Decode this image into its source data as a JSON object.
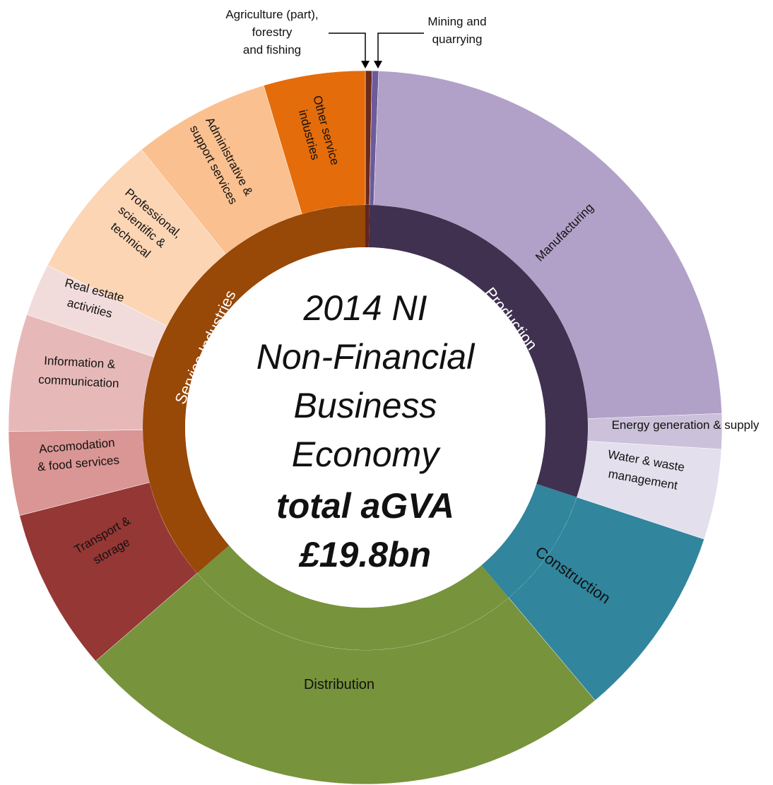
{
  "chart_data": {
    "type": "sunburst",
    "center_text": [
      "2014 NI",
      "Non-Financial",
      "Business",
      "Economy"
    ],
    "center_emphasis": [
      "total aGVA",
      "£19.8bn"
    ],
    "groups": [
      {
        "color": "#632523",
        "children": [
          {
            "name": [
              "Agriculture (part),",
              "forestry",
              "and fishing"
            ],
            "value": 0.3,
            "color": "#6b2a1a"
          }
        ]
      },
      {
        "name": "Production",
        "color": "#403151",
        "children": [
          {
            "name": [
              "Mining and",
              "quarrying"
            ],
            "value": 0.3,
            "color": "#6d5a9a"
          },
          {
            "name": [
              "Manufacturing"
            ],
            "value": 23.8,
            "color": "#b1a0c7"
          },
          {
            "name": [
              "Energy generation & supply"
            ],
            "value": 1.6,
            "color": "#ccc1da"
          },
          {
            "name": [
              "Water & waste",
              "management"
            ],
            "value": 4.1,
            "color": "#e4dfec"
          }
        ]
      },
      {
        "color": "#31859c",
        "children": [
          {
            "name": [
              "Construction"
            ],
            "value": 8.8,
            "color": "#31859c"
          }
        ]
      },
      {
        "color": "#77933c",
        "children": [
          {
            "name": [
              "Distribution"
            ],
            "value": 24.8,
            "color": "#77933c"
          }
        ]
      },
      {
        "name": "Service Industries",
        "color": "#984807",
        "children": [
          {
            "name": [
              "Transport &",
              "storage"
            ],
            "value": 7.4,
            "color": "#953735"
          },
          {
            "name": [
              "Accomodation",
              "& food services"
            ],
            "value": 3.8,
            "color": "#da9694"
          },
          {
            "name": [
              "Information &",
              "communication"
            ],
            "value": 5.3,
            "color": "#e6b9b8"
          },
          {
            "name": [
              "Real estate",
              "activities"
            ],
            "value": 2.4,
            "color": "#f2dcdb"
          },
          {
            "name": [
              "Professional,",
              "scientific &",
              "technical"
            ],
            "value": 6.7,
            "color": "#fcd5b5"
          },
          {
            "name": [
              "Administrative &",
              "support services"
            ],
            "value": 6.2,
            "color": "#fac090"
          },
          {
            "name": [
              "Other service",
              "industries"
            ],
            "value": 4.6,
            "color": "#e46c0a"
          }
        ]
      }
    ]
  }
}
